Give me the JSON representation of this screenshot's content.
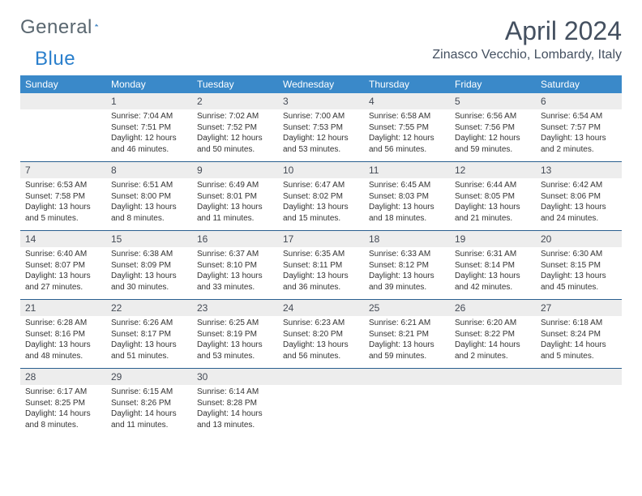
{
  "brand": {
    "part1": "General",
    "part2": "Blue"
  },
  "title": "April 2024",
  "location": "Zinasco Vecchio, Lombardy, Italy",
  "colors": {
    "header_bg": "#3a89c9",
    "header_text": "#ffffff",
    "daynum_bg": "#ededed",
    "rule": "#2a5f8f",
    "title_color": "#445060",
    "logo_gray": "#5a6770",
    "logo_blue": "#2a7fcc"
  },
  "day_headers": [
    "Sunday",
    "Monday",
    "Tuesday",
    "Wednesday",
    "Thursday",
    "Friday",
    "Saturday"
  ],
  "weeks": [
    [
      {
        "day": "",
        "sunrise": "",
        "sunset": "",
        "daylight1": "",
        "daylight2": ""
      },
      {
        "day": "1",
        "sunrise": "Sunrise: 7:04 AM",
        "sunset": "Sunset: 7:51 PM",
        "daylight1": "Daylight: 12 hours",
        "daylight2": "and 46 minutes."
      },
      {
        "day": "2",
        "sunrise": "Sunrise: 7:02 AM",
        "sunset": "Sunset: 7:52 PM",
        "daylight1": "Daylight: 12 hours",
        "daylight2": "and 50 minutes."
      },
      {
        "day": "3",
        "sunrise": "Sunrise: 7:00 AM",
        "sunset": "Sunset: 7:53 PM",
        "daylight1": "Daylight: 12 hours",
        "daylight2": "and 53 minutes."
      },
      {
        "day": "4",
        "sunrise": "Sunrise: 6:58 AM",
        "sunset": "Sunset: 7:55 PM",
        "daylight1": "Daylight: 12 hours",
        "daylight2": "and 56 minutes."
      },
      {
        "day": "5",
        "sunrise": "Sunrise: 6:56 AM",
        "sunset": "Sunset: 7:56 PM",
        "daylight1": "Daylight: 12 hours",
        "daylight2": "and 59 minutes."
      },
      {
        "day": "6",
        "sunrise": "Sunrise: 6:54 AM",
        "sunset": "Sunset: 7:57 PM",
        "daylight1": "Daylight: 13 hours",
        "daylight2": "and 2 minutes."
      }
    ],
    [
      {
        "day": "7",
        "sunrise": "Sunrise: 6:53 AM",
        "sunset": "Sunset: 7:58 PM",
        "daylight1": "Daylight: 13 hours",
        "daylight2": "and 5 minutes."
      },
      {
        "day": "8",
        "sunrise": "Sunrise: 6:51 AM",
        "sunset": "Sunset: 8:00 PM",
        "daylight1": "Daylight: 13 hours",
        "daylight2": "and 8 minutes."
      },
      {
        "day": "9",
        "sunrise": "Sunrise: 6:49 AM",
        "sunset": "Sunset: 8:01 PM",
        "daylight1": "Daylight: 13 hours",
        "daylight2": "and 11 minutes."
      },
      {
        "day": "10",
        "sunrise": "Sunrise: 6:47 AM",
        "sunset": "Sunset: 8:02 PM",
        "daylight1": "Daylight: 13 hours",
        "daylight2": "and 15 minutes."
      },
      {
        "day": "11",
        "sunrise": "Sunrise: 6:45 AM",
        "sunset": "Sunset: 8:03 PM",
        "daylight1": "Daylight: 13 hours",
        "daylight2": "and 18 minutes."
      },
      {
        "day": "12",
        "sunrise": "Sunrise: 6:44 AM",
        "sunset": "Sunset: 8:05 PM",
        "daylight1": "Daylight: 13 hours",
        "daylight2": "and 21 minutes."
      },
      {
        "day": "13",
        "sunrise": "Sunrise: 6:42 AM",
        "sunset": "Sunset: 8:06 PM",
        "daylight1": "Daylight: 13 hours",
        "daylight2": "and 24 minutes."
      }
    ],
    [
      {
        "day": "14",
        "sunrise": "Sunrise: 6:40 AM",
        "sunset": "Sunset: 8:07 PM",
        "daylight1": "Daylight: 13 hours",
        "daylight2": "and 27 minutes."
      },
      {
        "day": "15",
        "sunrise": "Sunrise: 6:38 AM",
        "sunset": "Sunset: 8:09 PM",
        "daylight1": "Daylight: 13 hours",
        "daylight2": "and 30 minutes."
      },
      {
        "day": "16",
        "sunrise": "Sunrise: 6:37 AM",
        "sunset": "Sunset: 8:10 PM",
        "daylight1": "Daylight: 13 hours",
        "daylight2": "and 33 minutes."
      },
      {
        "day": "17",
        "sunrise": "Sunrise: 6:35 AM",
        "sunset": "Sunset: 8:11 PM",
        "daylight1": "Daylight: 13 hours",
        "daylight2": "and 36 minutes."
      },
      {
        "day": "18",
        "sunrise": "Sunrise: 6:33 AM",
        "sunset": "Sunset: 8:12 PM",
        "daylight1": "Daylight: 13 hours",
        "daylight2": "and 39 minutes."
      },
      {
        "day": "19",
        "sunrise": "Sunrise: 6:31 AM",
        "sunset": "Sunset: 8:14 PM",
        "daylight1": "Daylight: 13 hours",
        "daylight2": "and 42 minutes."
      },
      {
        "day": "20",
        "sunrise": "Sunrise: 6:30 AM",
        "sunset": "Sunset: 8:15 PM",
        "daylight1": "Daylight: 13 hours",
        "daylight2": "and 45 minutes."
      }
    ],
    [
      {
        "day": "21",
        "sunrise": "Sunrise: 6:28 AM",
        "sunset": "Sunset: 8:16 PM",
        "daylight1": "Daylight: 13 hours",
        "daylight2": "and 48 minutes."
      },
      {
        "day": "22",
        "sunrise": "Sunrise: 6:26 AM",
        "sunset": "Sunset: 8:17 PM",
        "daylight1": "Daylight: 13 hours",
        "daylight2": "and 51 minutes."
      },
      {
        "day": "23",
        "sunrise": "Sunrise: 6:25 AM",
        "sunset": "Sunset: 8:19 PM",
        "daylight1": "Daylight: 13 hours",
        "daylight2": "and 53 minutes."
      },
      {
        "day": "24",
        "sunrise": "Sunrise: 6:23 AM",
        "sunset": "Sunset: 8:20 PM",
        "daylight1": "Daylight: 13 hours",
        "daylight2": "and 56 minutes."
      },
      {
        "day": "25",
        "sunrise": "Sunrise: 6:21 AM",
        "sunset": "Sunset: 8:21 PM",
        "daylight1": "Daylight: 13 hours",
        "daylight2": "and 59 minutes."
      },
      {
        "day": "26",
        "sunrise": "Sunrise: 6:20 AM",
        "sunset": "Sunset: 8:22 PM",
        "daylight1": "Daylight: 14 hours",
        "daylight2": "and 2 minutes."
      },
      {
        "day": "27",
        "sunrise": "Sunrise: 6:18 AM",
        "sunset": "Sunset: 8:24 PM",
        "daylight1": "Daylight: 14 hours",
        "daylight2": "and 5 minutes."
      }
    ],
    [
      {
        "day": "28",
        "sunrise": "Sunrise: 6:17 AM",
        "sunset": "Sunset: 8:25 PM",
        "daylight1": "Daylight: 14 hours",
        "daylight2": "and 8 minutes."
      },
      {
        "day": "29",
        "sunrise": "Sunrise: 6:15 AM",
        "sunset": "Sunset: 8:26 PM",
        "daylight1": "Daylight: 14 hours",
        "daylight2": "and 11 minutes."
      },
      {
        "day": "30",
        "sunrise": "Sunrise: 6:14 AM",
        "sunset": "Sunset: 8:28 PM",
        "daylight1": "Daylight: 14 hours",
        "daylight2": "and 13 minutes."
      },
      {
        "day": "",
        "sunrise": "",
        "sunset": "",
        "daylight1": "",
        "daylight2": ""
      },
      {
        "day": "",
        "sunrise": "",
        "sunset": "",
        "daylight1": "",
        "daylight2": ""
      },
      {
        "day": "",
        "sunrise": "",
        "sunset": "",
        "daylight1": "",
        "daylight2": ""
      },
      {
        "day": "",
        "sunrise": "",
        "sunset": "",
        "daylight1": "",
        "daylight2": ""
      }
    ]
  ]
}
